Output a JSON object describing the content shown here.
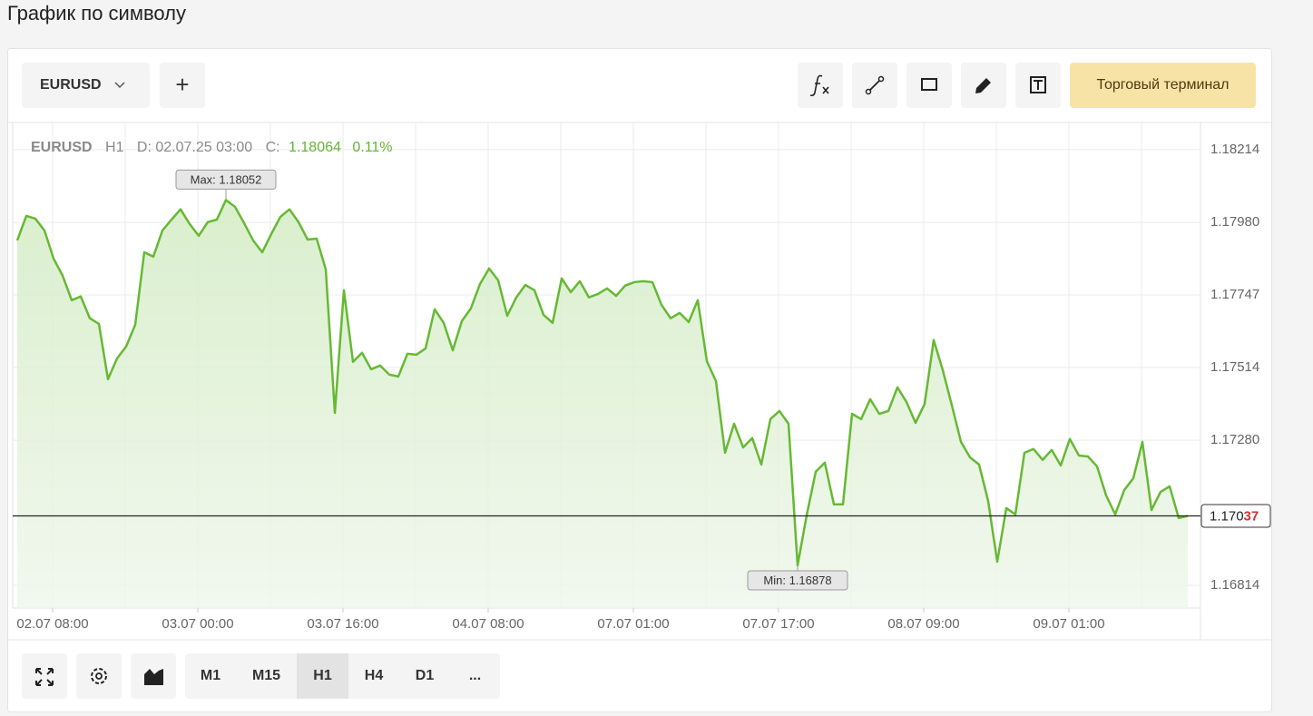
{
  "header": {
    "title": "График по символу"
  },
  "toolbar": {
    "symbol": "EURUSD",
    "add": "+",
    "trade_button": "Торговый терминал"
  },
  "chart_data": {
    "type": "line",
    "legend": {
      "symbol": "EURUSD",
      "timeframe": "H1",
      "date": "D: 02.07.25 03:00",
      "close_label": "C:",
      "close": 1.18064,
      "change": "0.11%"
    },
    "categories": [
      null,
      null,
      null,
      null,
      "02.07 08:00",
      null,
      null,
      null,
      null,
      null,
      null,
      null,
      null,
      null,
      null,
      null,
      null,
      null,
      null,
      null,
      "03.07 00:00",
      null,
      null,
      null,
      null,
      null,
      null,
      null,
      null,
      null,
      null,
      null,
      null,
      null,
      null,
      null,
      "03.07 16:00",
      null,
      null,
      null,
      null,
      null,
      null,
      null,
      null,
      null,
      null,
      null,
      null,
      null,
      null,
      null,
      "04.07 08:00",
      null,
      null,
      null,
      null,
      null,
      null,
      null,
      null,
      null,
      null,
      null,
      null,
      null,
      null,
      null,
      "07.07 01:00",
      null,
      null,
      null,
      null,
      null,
      null,
      null,
      null,
      null,
      null,
      null,
      null,
      null,
      null,
      null,
      "07.07 17:00",
      null,
      null,
      null,
      null,
      null,
      null,
      null,
      null,
      null,
      null,
      null,
      null,
      null,
      null,
      null,
      "08.07 09:00",
      null,
      null,
      null,
      null,
      null,
      null,
      null,
      null,
      null,
      null,
      null,
      null,
      null,
      null,
      null,
      "09.07 01:00",
      null,
      null,
      null,
      null,
      null,
      null,
      null,
      null,
      null,
      null,
      null,
      null,
      null
    ],
    "values": [
      1.17922,
      1.18001,
      1.17992,
      1.17954,
      1.17864,
      1.17809,
      1.1773,
      1.17742,
      1.17672,
      1.17654,
      1.17476,
      1.17543,
      1.17581,
      1.17651,
      1.17884,
      1.1787,
      1.17954,
      1.17989,
      1.18022,
      1.17975,
      1.17937,
      1.17981,
      1.17989,
      1.18052,
      1.1803,
      1.17978,
      1.17922,
      1.17884,
      1.17943,
      1.17998,
      1.18022,
      1.17981,
      1.17925,
      1.17928,
      1.17829,
      1.17368,
      1.17762,
      1.17532,
      1.17561,
      1.17508,
      1.1752,
      1.17491,
      1.17485,
      1.17558,
      1.17555,
      1.17575,
      1.17701,
      1.17657,
      1.17569,
      1.17663,
      1.17704,
      1.17782,
      1.17832,
      1.17794,
      1.1768,
      1.17739,
      1.17779,
      1.17762,
      1.17683,
      1.17657,
      1.178,
      1.17756,
      1.17791,
      1.17739,
      1.1775,
      1.17768,
      1.17744,
      1.17777,
      1.17788,
      1.17791,
      1.17788,
      1.17715,
      1.17672,
      1.17689,
      1.1766,
      1.1773,
      1.17534,
      1.1747,
      1.1724,
      1.17333,
      1.17257,
      1.17287,
      1.17202,
      1.17348,
      1.17374,
      1.17333,
      1.16878,
      1.17039,
      1.17179,
      1.17208,
      1.17074,
      1.17074,
      1.17365,
      1.17348,
      1.17412,
      1.17365,
      1.17374,
      1.1745,
      1.17403,
      1.17336,
      1.17397,
      1.17602,
      1.17505,
      1.17392,
      1.17275,
      1.17225,
      1.17202,
      1.17085,
      1.1689,
      1.17062,
      1.17042,
      1.1724,
      1.17252,
      1.17217,
      1.17249,
      1.17199,
      1.17284,
      1.17231,
      1.17228,
      1.17196,
      1.17103,
      1.17042,
      1.1712,
      1.17158,
      1.17275,
      1.17056,
      1.17114,
      1.17132,
      1.1703,
      1.17037
    ],
    "color": "#66b933",
    "max_label": "Max: 1.18052",
    "min_label": "Min: 1.16878",
    "current_price": 1.17037,
    "ylim": [
      1.16741,
      1.18301
    ],
    "yticks": [
      1.18214,
      {
        "value": 1.1798,
        "label": "1.17980"
      },
      1.17747,
      1.17514,
      {
        "value": 1.1728,
        "label": "1.17280"
      },
      1.16814
    ],
    "grid": true
  },
  "bottom_toolbar": {
    "timeframes": [
      "M1",
      "M15",
      "H1",
      "H4",
      "D1",
      "..."
    ],
    "active_timeframe": "H1"
  }
}
